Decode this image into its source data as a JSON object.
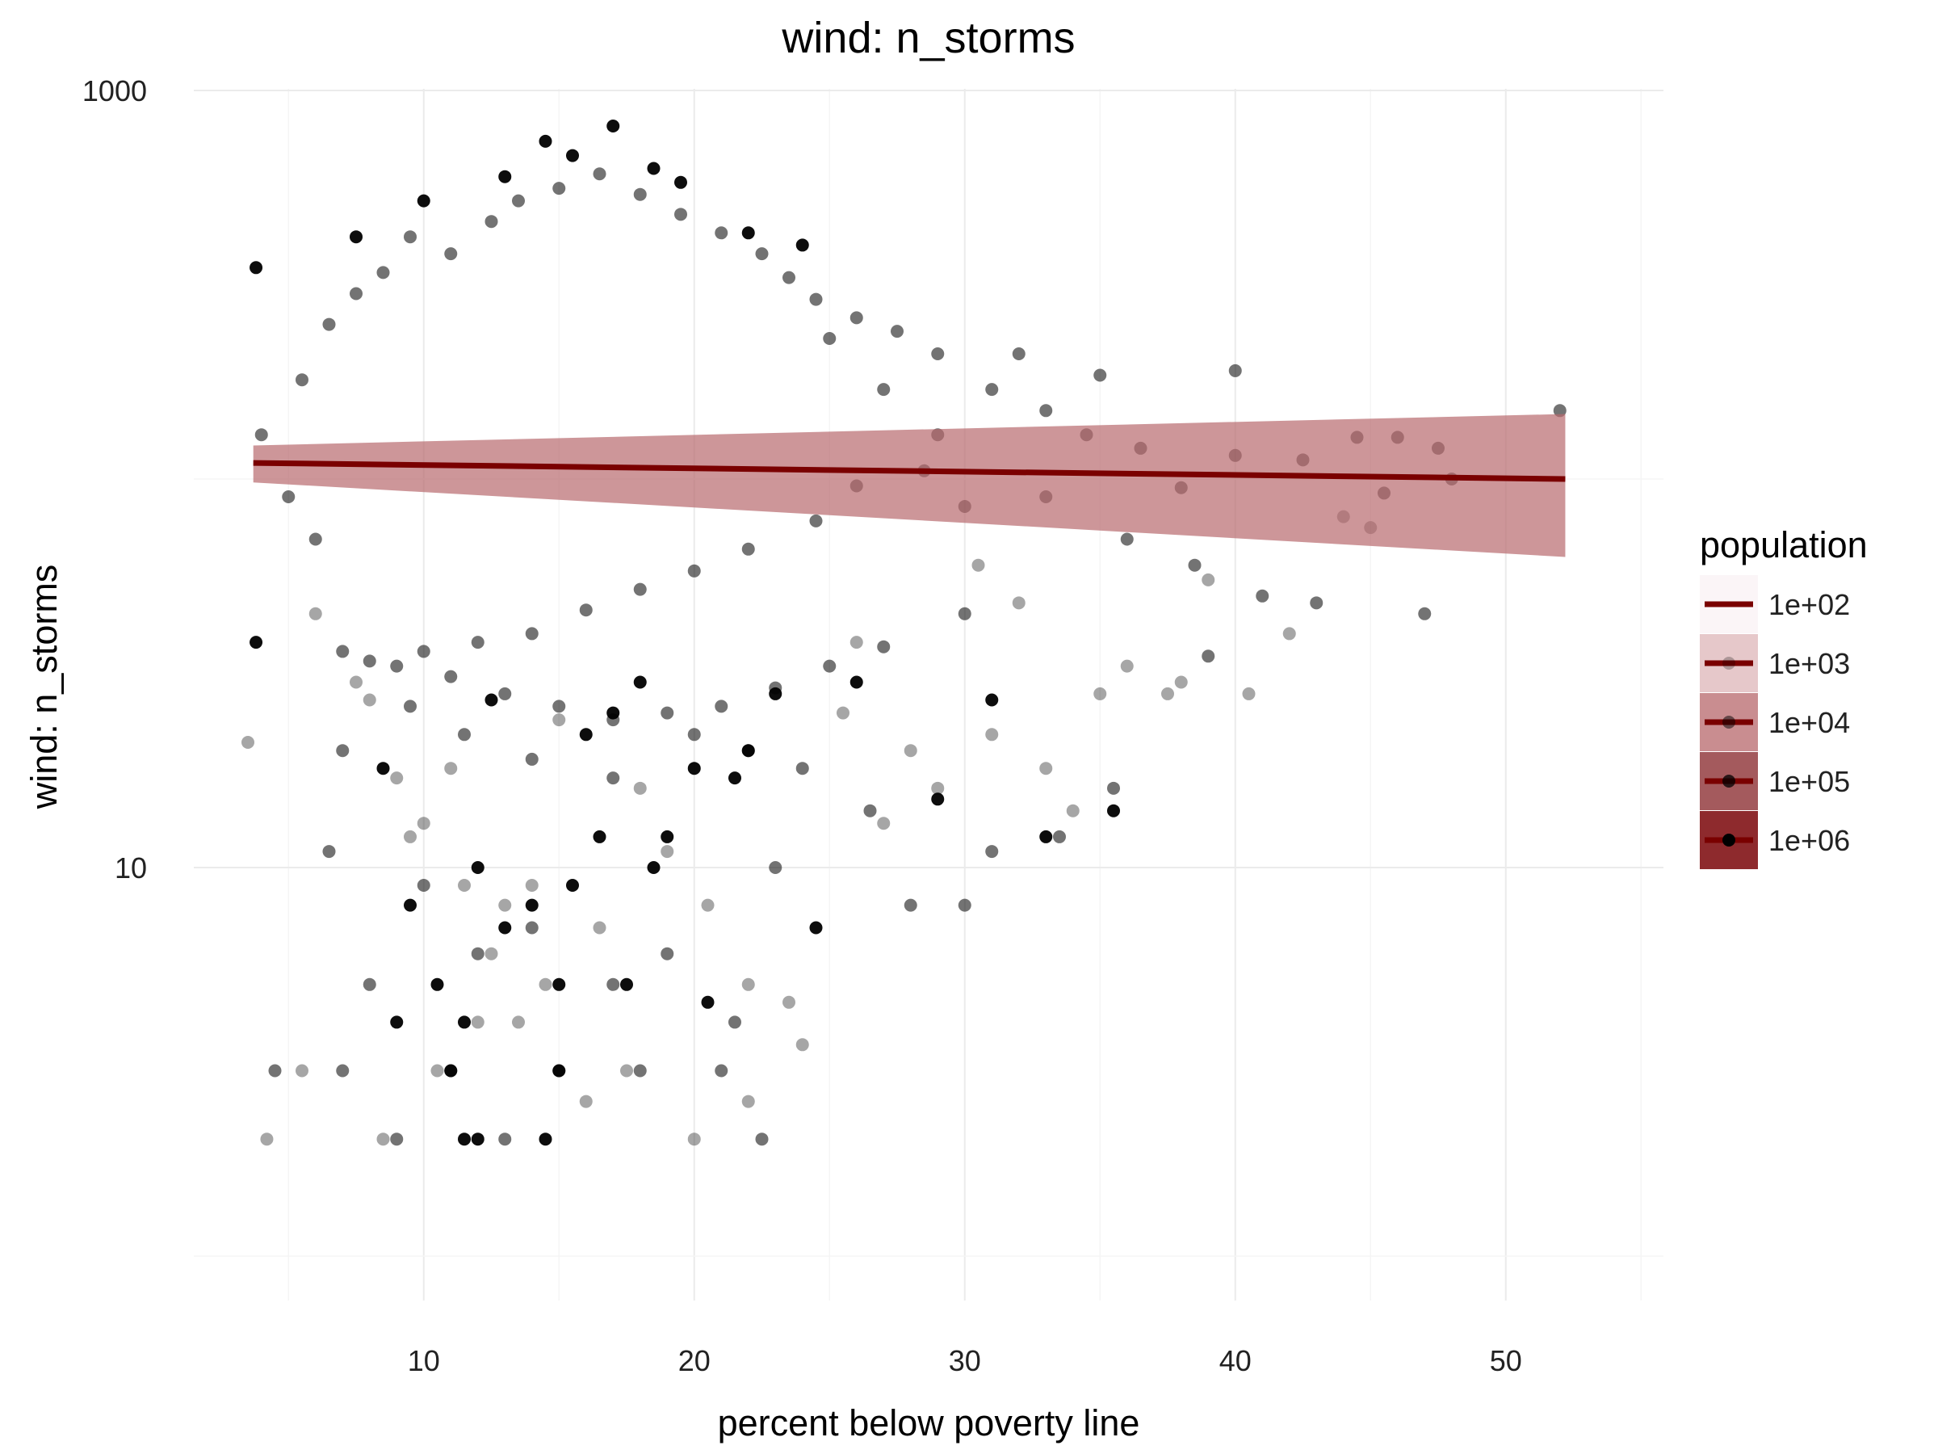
{
  "chart_data": {
    "type": "scatter",
    "title": "wind: n_storms",
    "xlabel": "percent below poverty line",
    "ylabel": "wind: n_storms",
    "xlim": [
      1.5,
      55
    ],
    "ylim": [
      1.6,
      1000
    ],
    "y_scale": "log10",
    "x_ticks": [
      10,
      20,
      30,
      40,
      50
    ],
    "x_tick_labels": [
      "10",
      "20",
      "30",
      "40",
      "50"
    ],
    "y_ticks": [
      10,
      1000
    ],
    "y_tick_labels": [
      "10",
      "1000"
    ],
    "grid": true,
    "legend": {
      "title": "population",
      "position": "right",
      "entries": [
        "1e+02",
        "1e+03",
        "1e+04",
        "1e+05",
        "1e+06"
      ]
    },
    "trend": {
      "x": [
        3.7,
        52.2
      ],
      "y": [
        110,
        100
      ],
      "ci_lower": [
        98,
        63
      ],
      "ci_upper": [
        122,
        147
      ],
      "color": "#7a0000",
      "band_color": "#b86a6e"
    },
    "point_color": "#000000",
    "series": [
      {
        "alpha": 0.35,
        "points": [
          [
            3.5,
            21
          ],
          [
            4.2,
            2
          ],
          [
            5.5,
            3
          ],
          [
            8.5,
            2
          ],
          [
            10.5,
            3
          ],
          [
            12,
            4
          ],
          [
            14.5,
            5
          ],
          [
            16,
            2.5
          ],
          [
            17.5,
            3
          ],
          [
            20,
            2
          ],
          [
            22,
            2.5
          ],
          [
            24,
            3.5
          ],
          [
            13,
            8
          ],
          [
            9.5,
            12
          ],
          [
            11,
            18
          ],
          [
            15,
            24
          ],
          [
            18,
            16
          ],
          [
            7.5,
            30
          ],
          [
            25.5,
            25
          ],
          [
            28,
            20
          ],
          [
            31,
            22
          ],
          [
            33,
            18
          ],
          [
            35,
            28
          ],
          [
            37.5,
            28
          ],
          [
            40.5,
            28
          ],
          [
            38,
            30
          ],
          [
            42,
            40
          ],
          [
            6,
            45
          ],
          [
            10,
            13
          ],
          [
            12.5,
            6
          ],
          [
            19,
            11
          ],
          [
            22,
            5
          ],
          [
            16.5,
            7
          ],
          [
            27,
            13
          ],
          [
            29,
            16
          ],
          [
            34,
            14
          ],
          [
            36,
            33
          ],
          [
            39,
            55
          ],
          [
            44,
            80
          ],
          [
            11.5,
            9
          ],
          [
            14,
            9
          ],
          [
            13.5,
            4
          ],
          [
            23.5,
            4.5
          ],
          [
            8,
            27
          ],
          [
            9,
            17
          ],
          [
            20.5,
            8
          ],
          [
            26,
            38
          ],
          [
            32,
            48
          ],
          [
            30.5,
            60
          ],
          [
            45,
            75
          ]
        ]
      },
      {
        "alpha": 0.55,
        "points": [
          [
            4.5,
            3
          ],
          [
            7,
            3
          ],
          [
            9,
            2
          ],
          [
            11,
            3
          ],
          [
            13,
            2
          ],
          [
            15,
            3
          ],
          [
            18,
            3
          ],
          [
            21,
            3
          ],
          [
            22.5,
            2
          ],
          [
            6.5,
            11
          ],
          [
            8,
            5
          ],
          [
            10,
            9
          ],
          [
            12,
            6
          ],
          [
            14,
            7
          ],
          [
            17,
            5
          ],
          [
            19,
            6
          ],
          [
            21.5,
            4
          ],
          [
            23,
            10
          ],
          [
            7,
            20
          ],
          [
            9.5,
            26
          ],
          [
            11.5,
            22
          ],
          [
            14,
            19
          ],
          [
            17,
            17
          ],
          [
            20,
            22
          ],
          [
            22,
            20
          ],
          [
            24,
            18
          ],
          [
            26.5,
            14
          ],
          [
            28,
            8
          ],
          [
            30,
            8
          ],
          [
            31,
            11
          ],
          [
            33.5,
            12
          ],
          [
            35.5,
            16
          ],
          [
            39,
            35
          ],
          [
            41,
            50
          ],
          [
            47,
            45
          ],
          [
            52,
            150
          ],
          [
            40,
            190
          ],
          [
            27,
            170
          ],
          [
            32,
            210
          ],
          [
            35,
            185
          ],
          [
            25,
            230
          ],
          [
            29,
            130
          ],
          [
            36,
            70
          ],
          [
            38.5,
            60
          ],
          [
            43,
            48
          ],
          [
            45.5,
            92
          ],
          [
            47.5,
            120
          ],
          [
            48,
            100
          ],
          [
            42.5,
            112
          ],
          [
            46,
            128
          ],
          [
            44.5,
            128
          ],
          [
            40,
            115
          ],
          [
            33,
            90
          ],
          [
            30,
            85
          ],
          [
            28.5,
            105
          ],
          [
            26,
            96
          ],
          [
            24.5,
            78
          ],
          [
            22,
            66
          ],
          [
            20,
            58
          ],
          [
            18,
            52
          ],
          [
            16,
            46
          ],
          [
            14,
            40
          ],
          [
            12,
            38
          ],
          [
            10,
            36
          ],
          [
            8,
            34
          ],
          [
            6,
            70
          ],
          [
            5,
            90
          ],
          [
            4,
            130
          ],
          [
            5.5,
            180
          ],
          [
            6.5,
            250
          ],
          [
            7.5,
            300
          ],
          [
            8.5,
            340
          ],
          [
            9.5,
            420
          ],
          [
            11,
            380
          ],
          [
            12.5,
            460
          ],
          [
            13.5,
            520
          ],
          [
            15,
            560
          ],
          [
            16.5,
            610
          ],
          [
            18,
            540
          ],
          [
            19.5,
            480
          ],
          [
            21,
            430
          ],
          [
            22.5,
            380
          ],
          [
            23.5,
            330
          ],
          [
            24.5,
            290
          ],
          [
            26,
            260
          ],
          [
            27.5,
            240
          ],
          [
            29,
            210
          ],
          [
            31,
            170
          ],
          [
            33,
            150
          ],
          [
            34.5,
            130
          ],
          [
            36.5,
            120
          ],
          [
            38,
            95
          ],
          [
            30,
            45
          ],
          [
            27,
            37
          ],
          [
            25,
            33
          ],
          [
            23,
            29
          ],
          [
            21,
            26
          ],
          [
            19,
            25
          ],
          [
            17,
            24
          ],
          [
            15,
            26
          ],
          [
            13,
            28
          ],
          [
            11,
            31
          ],
          [
            9,
            33
          ],
          [
            7,
            36
          ]
        ]
      },
      {
        "alpha": 0.95,
        "points": [
          [
            3.8,
            350
          ],
          [
            7.5,
            420
          ],
          [
            10,
            520
          ],
          [
            13,
            600
          ],
          [
            14.5,
            740
          ],
          [
            15.5,
            680
          ],
          [
            17,
            810
          ],
          [
            18.5,
            630
          ],
          [
            19.5,
            580
          ],
          [
            22,
            430
          ],
          [
            24,
            400
          ],
          [
            8.5,
            18
          ],
          [
            9.5,
            8
          ],
          [
            10.5,
            5
          ],
          [
            11.5,
            4
          ],
          [
            12,
            10
          ],
          [
            13,
            7
          ],
          [
            14,
            8
          ],
          [
            15,
            5
          ],
          [
            16.5,
            12
          ],
          [
            17.5,
            5
          ],
          [
            19,
            12
          ],
          [
            20.5,
            4.5
          ],
          [
            21.5,
            17
          ],
          [
            24.5,
            7
          ],
          [
            3.8,
            38
          ],
          [
            11,
            3
          ],
          [
            12,
            2
          ],
          [
            15,
            3
          ],
          [
            16,
            22
          ],
          [
            18,
            30
          ],
          [
            20,
            18
          ],
          [
            26,
            30
          ],
          [
            29,
            15
          ],
          [
            31,
            27
          ],
          [
            33,
            12
          ],
          [
            35.5,
            14
          ],
          [
            9,
            4
          ],
          [
            11.5,
            2
          ],
          [
            14.5,
            2
          ],
          [
            17,
            25
          ],
          [
            12.5,
            27
          ],
          [
            18.5,
            10
          ],
          [
            22,
            20
          ],
          [
            15.5,
            9
          ],
          [
            23,
            28
          ]
        ]
      }
    ]
  }
}
